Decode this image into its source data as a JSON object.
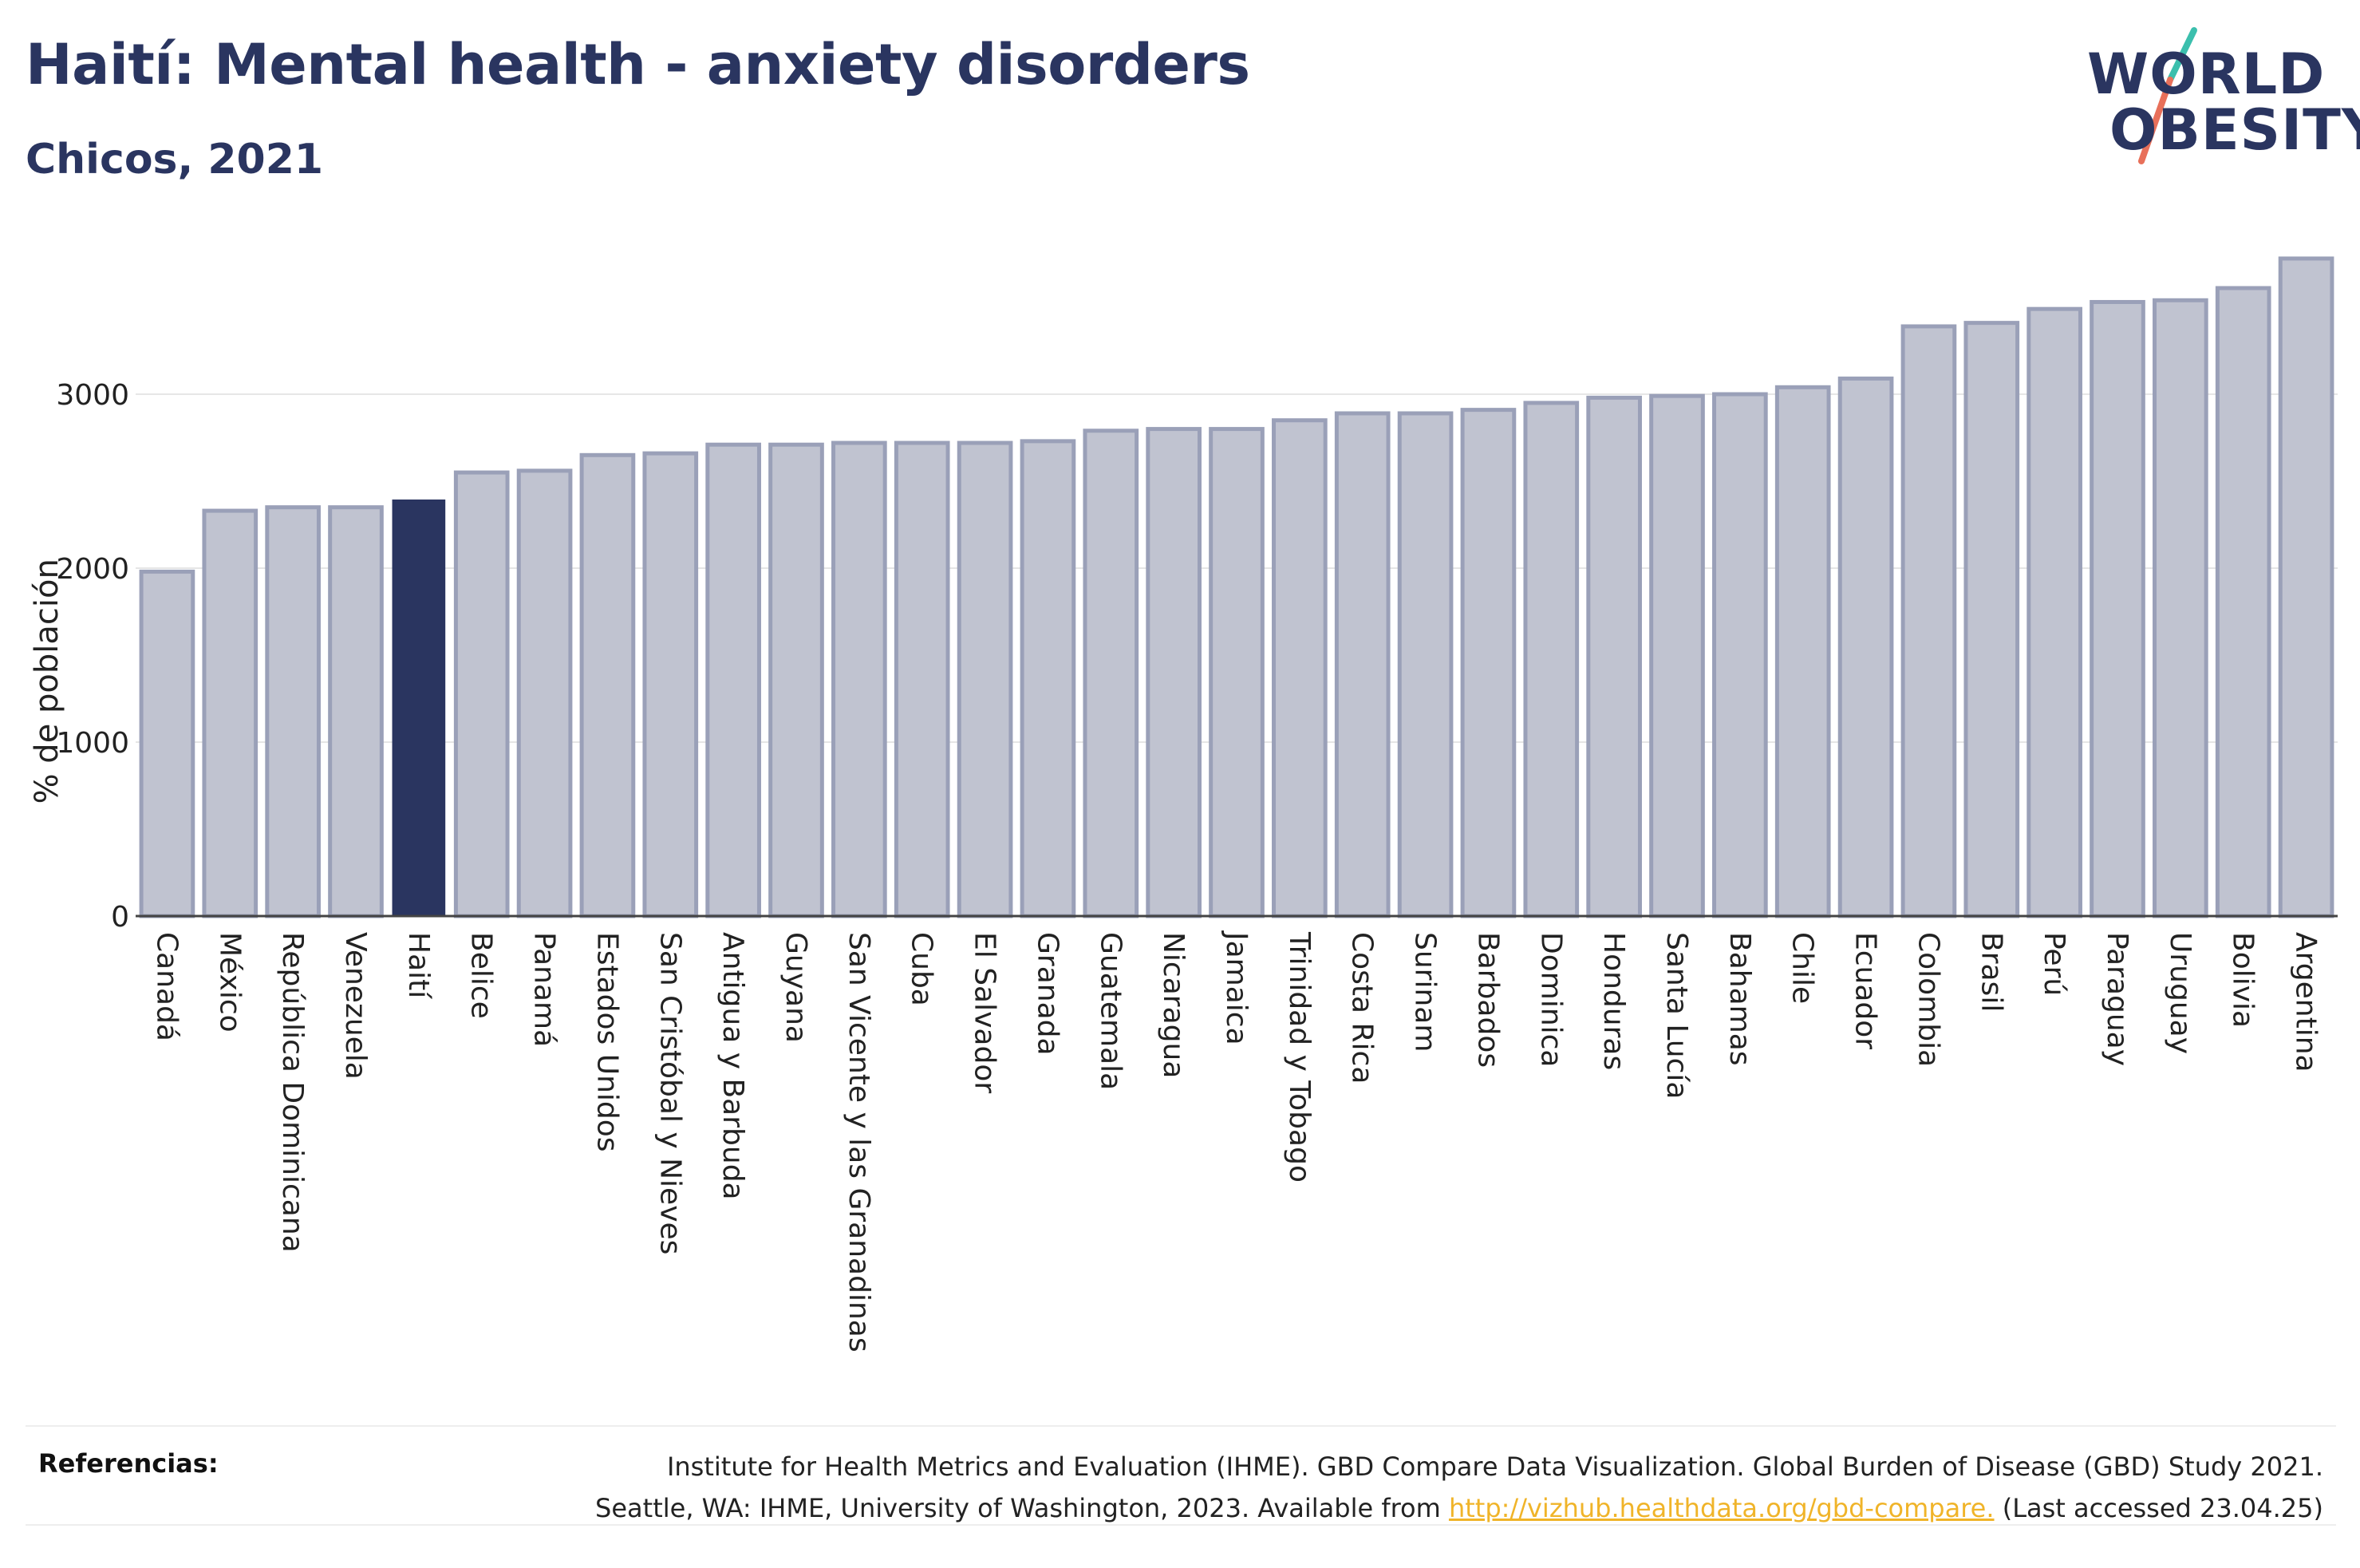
{
  "title": "Haití: Mental health - anxiety disorders",
  "subtitle": "Chicos, 2021",
  "logo": {
    "line1": "WORLD",
    "line2": "OBESITY"
  },
  "colors": {
    "bar": "#c0c3d0",
    "bar_stroke": "#9aa0b8",
    "highlight": "#2a3560",
    "text": "#2a3560",
    "grid": "#e6e6e6",
    "link": "#f0b429",
    "logo_slash_teal": "#3bbfad",
    "logo_slash_coral": "#e8705a"
  },
  "chart_data": {
    "type": "bar",
    "categories": [
      "Canadá",
      "México",
      "República Dominicana",
      "Venezuela",
      "Haití",
      "Belice",
      "Panamá",
      "Estados Unidos",
      "San Cristóbal y Nieves",
      "Antigua y Barbuda",
      "Guyana",
      "San Vicente y las Granadinas",
      "Cuba",
      "El Salvador",
      "Granada",
      "Guatemala",
      "Nicaragua",
      "Jamaica",
      "Trinidad y Tobago",
      "Costa Rica",
      "Surinam",
      "Barbados",
      "Dominica",
      "Honduras",
      "Santa Lucía",
      "Bahamas",
      "Chile",
      "Ecuador",
      "Colombia",
      "Brasil",
      "Perú",
      "Paraguay",
      "Uruguay",
      "Bolivia",
      "Argentina"
    ],
    "values": [
      1980,
      2330,
      2350,
      2350,
      2390,
      2550,
      2560,
      2650,
      2660,
      2710,
      2710,
      2720,
      2720,
      2720,
      2730,
      2790,
      2800,
      2800,
      2850,
      2890,
      2890,
      2910,
      2950,
      2980,
      2990,
      3000,
      3040,
      3090,
      3390,
      3410,
      3490,
      3530,
      3540,
      3610,
      3780
    ],
    "highlight": "Haití",
    "ylabel": "% de población",
    "yticks": [
      0,
      1000,
      2000,
      3000
    ],
    "ylim": [
      0,
      3800
    ],
    "grid": true
  },
  "references": {
    "label": "Referencias:",
    "line1": "Institute for Health Metrics and Evaluation (IHME). GBD Compare Data Visualization. Global Burden of Disease (GBD) Study 2021.",
    "line2_prefix": "Seattle, WA: IHME, University of Washington, 2023. Available from ",
    "link_text": "http://vizhub.healthdata.org/gbd-compare.",
    "line2_suffix": " (Last accessed 23.04.25)"
  }
}
